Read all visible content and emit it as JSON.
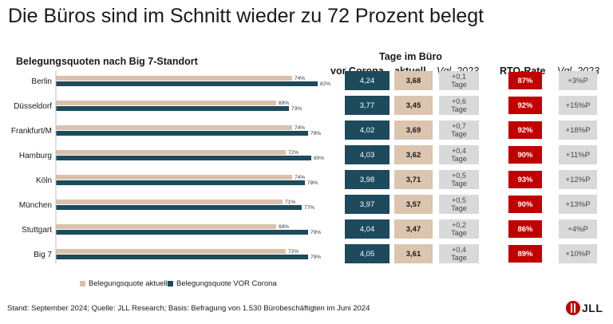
{
  "title": "Die Büros sind im Schnitt wieder zu 72 Prozent belegt",
  "subtitle": "Belegungsquoten nach Big 7-Standort",
  "table_headers": {
    "group": "Tage im Büro",
    "vor_corona": "vor Corona",
    "aktuell": "aktuell",
    "vgl_2023": "Vgl. 2023",
    "rto_rate": "RTO-Rate",
    "rto_vgl_2023": "Vgl. 2023"
  },
  "colors": {
    "aktuell": "#d9c1ab",
    "vor_corona": "#1d4a5c",
    "rto": "#c00000",
    "grey_cell": "#d9d9d9"
  },
  "chart_data": {
    "type": "bar",
    "title": "Belegungsquoten nach Big 7-Standort",
    "orientation": "horizontal",
    "categories": [
      "Berlin",
      "Düsseldorf",
      "Frankfurt/M",
      "Hamburg",
      "Köln",
      "München",
      "Stuttgart",
      "Big 7"
    ],
    "series": [
      {
        "name": "Belegungsquote aktuell",
        "values": [
          74,
          69,
          74,
          72,
          74,
          71,
          69,
          72
        ],
        "labels": [
          "74%",
          "69%",
          "74%",
          "72%",
          "74%",
          "71%",
          "69%",
          "72%"
        ]
      },
      {
        "name": "Belegungsquote VOR Corona",
        "values": [
          82,
          73,
          79,
          80,
          78,
          77,
          79,
          79
        ],
        "labels": [
          "82%",
          "73%",
          "79%",
          "80%",
          "78%",
          "77%",
          "79%",
          "79%"
        ]
      }
    ],
    "xlim": [
      0,
      100
    ],
    "unit": "%",
    "legend_position": "bottom"
  },
  "rows": [
    {
      "vor_corona": "4,24",
      "aktuell": "3,68",
      "vgl_2023_line1": "+0,1",
      "vgl_2023_line2": "Tage",
      "rto_rate": "87%",
      "rto_vgl_2023": "+3%P"
    },
    {
      "vor_corona": "3,77",
      "aktuell": "3,45",
      "vgl_2023_line1": "+0,6",
      "vgl_2023_line2": "Tage",
      "rto_rate": "92%",
      "rto_vgl_2023": "+15%P"
    },
    {
      "vor_corona": "4,02",
      "aktuell": "3,69",
      "vgl_2023_line1": "+0,7",
      "vgl_2023_line2": "Tage",
      "rto_rate": "92%",
      "rto_vgl_2023": "+18%P"
    },
    {
      "vor_corona": "4,03",
      "aktuell": "3,62",
      "vgl_2023_line1": "+0,4",
      "vgl_2023_line2": "Tage",
      "rto_rate": "90%",
      "rto_vgl_2023": "+11%P"
    },
    {
      "vor_corona": "3,98",
      "aktuell": "3,71",
      "vgl_2023_line1": "+0,5",
      "vgl_2023_line2": "Tage",
      "rto_rate": "93%",
      "rto_vgl_2023": "+12%P"
    },
    {
      "vor_corona": "3,97",
      "aktuell": "3,57",
      "vgl_2023_line1": "+0,5",
      "vgl_2023_line2": "Tage",
      "rto_rate": "90%",
      "rto_vgl_2023": "+13%P"
    },
    {
      "vor_corona": "4,04",
      "aktuell": "3,47",
      "vgl_2023_line1": "+0,2",
      "vgl_2023_line2": "Tage",
      "rto_rate": "86%",
      "rto_vgl_2023": "+4%P"
    },
    {
      "vor_corona": "4,05",
      "aktuell": "3,61",
      "vgl_2023_line1": "+0,4",
      "vgl_2023_line2": "Tage",
      "rto_rate": "89%",
      "rto_vgl_2023": "+10%P"
    }
  ],
  "legend": {
    "aktuell": "Belegungsquote aktuell",
    "vor_corona": "Belegungsquote VOR Corona"
  },
  "footer": "Stand: September 2024; Quelle: JLL Research; Basis: Befragung von 1.530 Bürobeschäftigten im Juni 2024",
  "logo": {
    "text": "JLL"
  }
}
